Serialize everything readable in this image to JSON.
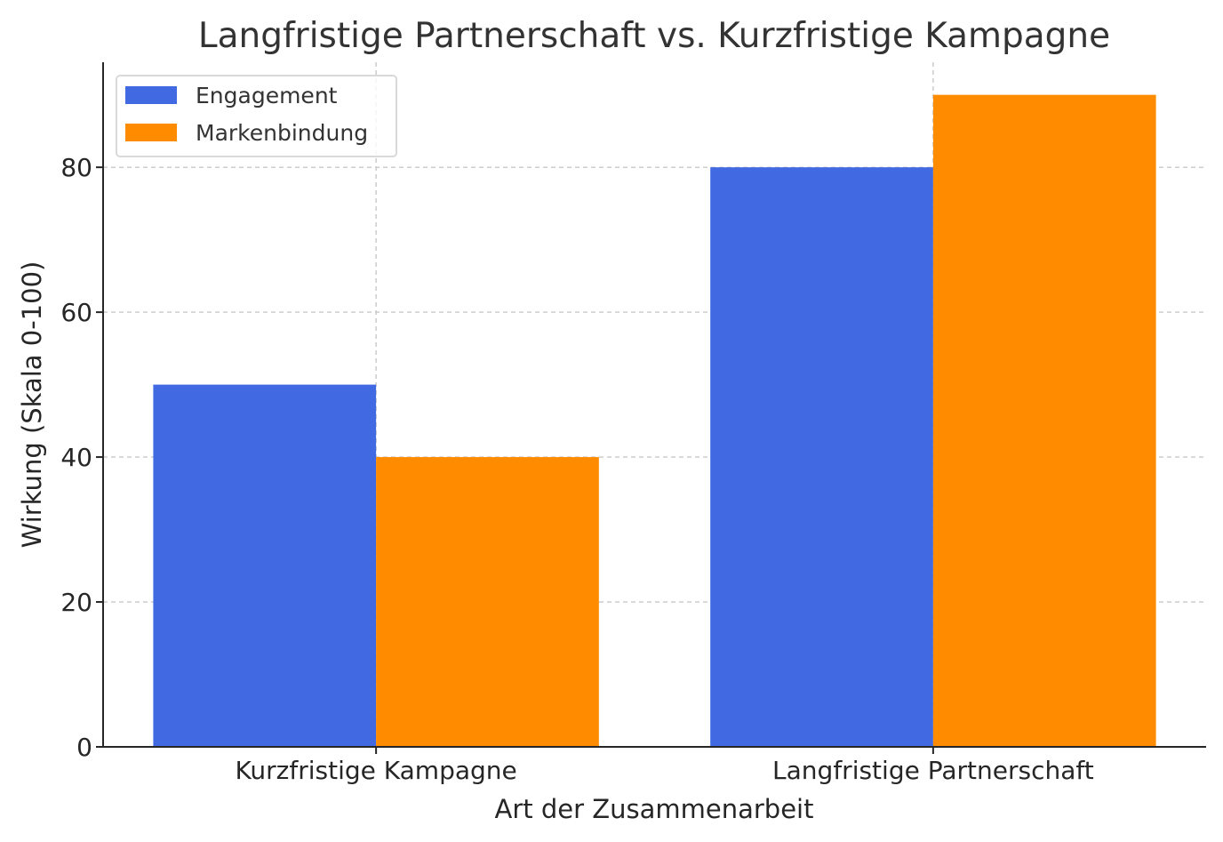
{
  "chart_data": {
    "type": "bar",
    "title": "Langfristige Partnerschaft vs. Kurzfristige Kampagne",
    "xlabel": "Art der Zusammenarbeit",
    "ylabel": "Wirkung (Skala 0-100)",
    "categories": [
      "Kurzfristige Kampagne",
      "Langfristige Partnerschaft"
    ],
    "series": [
      {
        "name": "Engagement",
        "values": [
          50,
          80
        ],
        "color": "#4169E1"
      },
      {
        "name": "Markenbindung",
        "values": [
          40,
          90
        ],
        "color": "#FF8C00"
      }
    ],
    "yticks": [
      0,
      20,
      40,
      60,
      80
    ],
    "ylim": [
      0,
      94.5
    ],
    "grid": true,
    "legend_position": "top-left"
  }
}
